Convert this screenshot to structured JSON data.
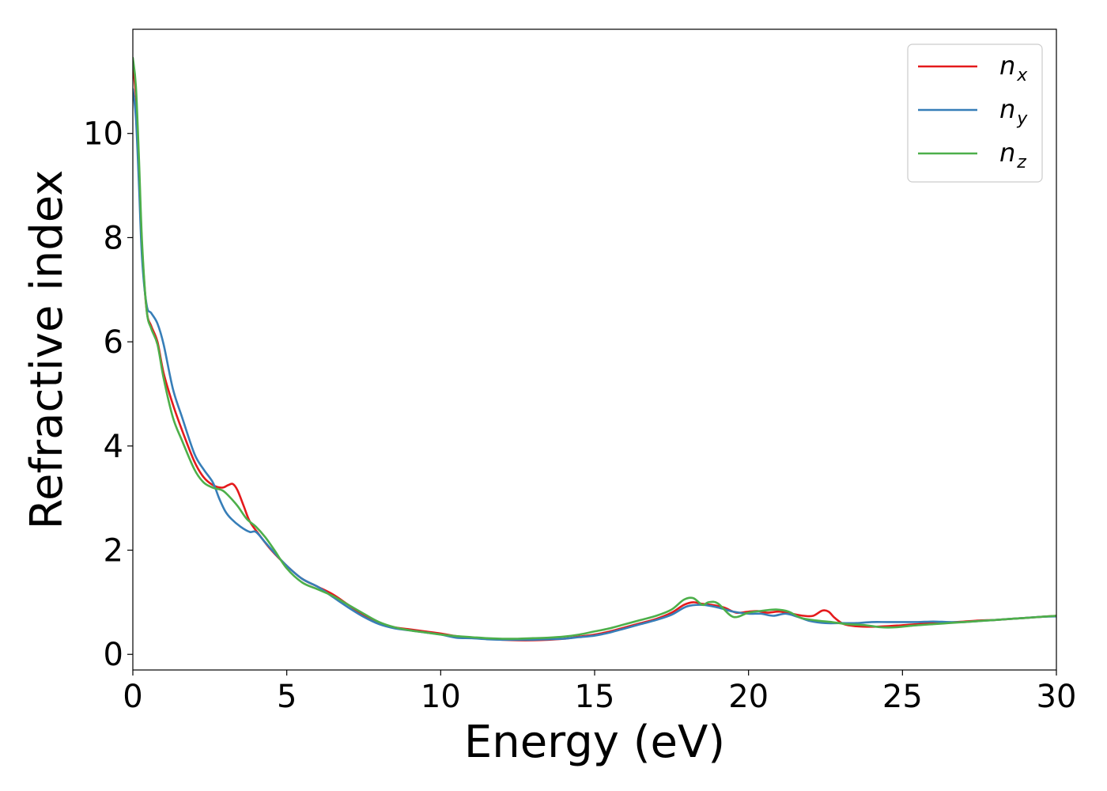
{
  "chart_data": {
    "type": "line",
    "title": "",
    "xlabel": "Energy (eV)",
    "ylabel": "Refractive index",
    "xlim": [
      0,
      30
    ],
    "ylim": [
      -0.3,
      12
    ],
    "xticks": [
      0,
      5,
      10,
      15,
      20,
      25,
      30
    ],
    "yticks": [
      0,
      2,
      4,
      6,
      8,
      10
    ],
    "grid": false,
    "legend_position": "top-right",
    "series": [
      {
        "name": "n",
        "subscript": "x",
        "color": "#e41a1c",
        "x": [
          0.0,
          0.1,
          0.2,
          0.3,
          0.45,
          0.6,
          0.8,
          1.0,
          1.3,
          1.6,
          2.0,
          2.3,
          2.6,
          2.9,
          3.1,
          3.25,
          3.4,
          3.6,
          3.8,
          4.1,
          4.5,
          5.0,
          5.5,
          6.0,
          6.5,
          7.0,
          7.5,
          8.0,
          8.5,
          9.0,
          9.5,
          10.0,
          10.5,
          11.0,
          11.5,
          12.0,
          12.5,
          13.0,
          13.5,
          14.0,
          14.5,
          15.0,
          15.5,
          16.0,
          16.5,
          17.0,
          17.5,
          17.9,
          18.2,
          18.5,
          18.8,
          19.2,
          19.6,
          20.0,
          20.3,
          20.6,
          21.0,
          21.4,
          21.8,
          22.1,
          22.4,
          22.6,
          22.8,
          23.1,
          23.5,
          24.0,
          24.5,
          25.0,
          25.5,
          26.0,
          26.5,
          27.0,
          27.5,
          28.0,
          28.5,
          29.0,
          29.5,
          30.0
        ],
        "values": [
          11.3,
          10.7,
          9.3,
          7.8,
          6.6,
          6.3,
          6.0,
          5.4,
          4.8,
          4.3,
          3.7,
          3.4,
          3.25,
          3.2,
          3.25,
          3.27,
          3.15,
          2.85,
          2.55,
          2.3,
          2.0,
          1.7,
          1.45,
          1.3,
          1.15,
          0.95,
          0.75,
          0.6,
          0.52,
          0.48,
          0.44,
          0.4,
          0.35,
          0.32,
          0.3,
          0.28,
          0.27,
          0.27,
          0.28,
          0.3,
          0.34,
          0.38,
          0.44,
          0.52,
          0.6,
          0.68,
          0.8,
          0.95,
          1.0,
          0.97,
          0.95,
          0.9,
          0.8,
          0.82,
          0.83,
          0.8,
          0.82,
          0.78,
          0.74,
          0.74,
          0.84,
          0.82,
          0.7,
          0.58,
          0.54,
          0.53,
          0.54,
          0.56,
          0.58,
          0.6,
          0.61,
          0.63,
          0.65,
          0.66,
          0.68,
          0.7,
          0.72,
          0.74
        ]
      },
      {
        "name": "n",
        "subscript": "y",
        "color": "#377eb8",
        "x": [
          0.0,
          0.1,
          0.2,
          0.3,
          0.45,
          0.6,
          0.8,
          1.0,
          1.3,
          1.6,
          2.0,
          2.3,
          2.6,
          2.8,
          3.0,
          3.2,
          3.5,
          3.8,
          4.0,
          4.3,
          4.6,
          5.0,
          5.5,
          6.0,
          6.5,
          7.0,
          7.5,
          8.0,
          8.5,
          9.0,
          9.5,
          10.0,
          10.5,
          11.0,
          11.5,
          12.0,
          12.5,
          13.0,
          13.5,
          14.0,
          14.5,
          15.0,
          15.5,
          16.0,
          16.5,
          17.0,
          17.5,
          18.0,
          18.5,
          19.0,
          19.5,
          20.0,
          20.4,
          20.8,
          21.2,
          21.6,
          22.0,
          22.5,
          23.0,
          23.5,
          24.0,
          24.5,
          25.0,
          25.5,
          26.0,
          26.5,
          27.0,
          27.5,
          28.0,
          28.5,
          29.0,
          29.5,
          30.0
        ],
        "values": [
          10.85,
          10.3,
          9.0,
          7.6,
          6.7,
          6.55,
          6.35,
          5.95,
          5.1,
          4.55,
          3.85,
          3.55,
          3.3,
          3.0,
          2.75,
          2.6,
          2.45,
          2.35,
          2.35,
          2.15,
          1.95,
          1.7,
          1.45,
          1.3,
          1.1,
          0.9,
          0.72,
          0.58,
          0.5,
          0.46,
          0.42,
          0.38,
          0.32,
          0.31,
          0.29,
          0.28,
          0.28,
          0.28,
          0.29,
          0.3,
          0.33,
          0.36,
          0.42,
          0.5,
          0.58,
          0.66,
          0.76,
          0.92,
          0.95,
          0.9,
          0.82,
          0.78,
          0.78,
          0.74,
          0.78,
          0.72,
          0.64,
          0.6,
          0.6,
          0.6,
          0.62,
          0.62,
          0.62,
          0.62,
          0.63,
          0.62,
          0.62,
          0.64,
          0.66,
          0.68,
          0.7,
          0.72,
          0.73
        ]
      },
      {
        "name": "n",
        "subscript": "z",
        "color": "#4daf4a",
        "x": [
          0.0,
          0.1,
          0.2,
          0.3,
          0.45,
          0.6,
          0.8,
          1.0,
          1.3,
          1.6,
          2.0,
          2.3,
          2.6,
          2.9,
          3.1,
          3.4,
          3.7,
          4.0,
          4.3,
          4.6,
          5.0,
          5.5,
          6.0,
          6.5,
          7.0,
          7.5,
          8.0,
          8.5,
          9.0,
          9.5,
          10.0,
          10.5,
          11.0,
          11.5,
          12.0,
          12.5,
          13.0,
          13.5,
          14.0,
          14.5,
          15.0,
          15.5,
          16.0,
          16.5,
          17.0,
          17.5,
          17.9,
          18.2,
          18.5,
          18.7,
          19.0,
          19.5,
          20.0,
          20.5,
          20.9,
          21.3,
          21.7,
          22.2,
          22.7,
          23.2,
          23.8,
          24.3,
          24.8,
          25.3,
          26.0,
          26.5,
          27.0,
          27.5,
          28.0,
          28.5,
          29.0,
          29.5,
          30.0
        ],
        "values": [
          11.45,
          10.9,
          9.5,
          7.9,
          6.6,
          6.25,
          5.95,
          5.3,
          4.55,
          4.1,
          3.55,
          3.3,
          3.2,
          3.15,
          3.05,
          2.85,
          2.6,
          2.45,
          2.25,
          2.0,
          1.65,
          1.38,
          1.25,
          1.12,
          0.95,
          0.78,
          0.62,
          0.52,
          0.46,
          0.42,
          0.38,
          0.35,
          0.33,
          0.31,
          0.3,
          0.3,
          0.31,
          0.32,
          0.34,
          0.38,
          0.44,
          0.5,
          0.58,
          0.66,
          0.74,
          0.86,
          1.05,
          1.08,
          0.95,
          1.0,
          0.98,
          0.72,
          0.8,
          0.84,
          0.86,
          0.82,
          0.7,
          0.65,
          0.62,
          0.58,
          0.56,
          0.52,
          0.52,
          0.55,
          0.58,
          0.6,
          0.62,
          0.64,
          0.66,
          0.68,
          0.7,
          0.72,
          0.74
        ]
      }
    ]
  }
}
